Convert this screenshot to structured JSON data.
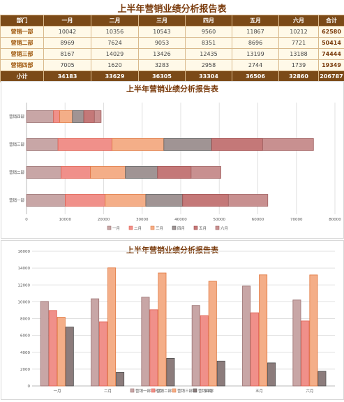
{
  "title": "上半年营销业绩分析报告表",
  "table": {
    "headers": [
      "部门",
      "一月",
      "二月",
      "三月",
      "四月",
      "五月",
      "六月",
      "合计"
    ],
    "rows": [
      {
        "dept": "营销一部",
        "values": [
          10042,
          10356,
          10543,
          9560,
          11867,
          10212
        ],
        "total": 62580
      },
      {
        "dept": "营销二部",
        "values": [
          8969,
          7624,
          9053,
          8351,
          8696,
          7721
        ],
        "total": 50414
      },
      {
        "dept": "营销三部",
        "values": [
          8167,
          14029,
          13426,
          12435,
          13199,
          13188
        ],
        "total": 74444
      },
      {
        "dept": "营销四部",
        "values": [
          7005,
          1620,
          3283,
          2958,
          2744,
          1739
        ],
        "total": 19349
      }
    ],
    "footer": {
      "label": "小计",
      "values": [
        34183,
        33629,
        36305,
        33304,
        36506,
        32860
      ],
      "total": 206787
    }
  },
  "colors": {
    "month_series": [
      "#c8a6a6",
      "#f0908a",
      "#f4ae88",
      "#a09494",
      "#c47878",
      "#c89090"
    ],
    "month_series_stroke": [
      "#9a7070",
      "#e06050",
      "#e07840",
      "#606060",
      "#a04848",
      "#a06060"
    ],
    "dept_series": [
      "#c8a6a6",
      "#f0908a",
      "#f4ae88",
      "#8c7c7c"
    ],
    "dept_series_stroke": [
      "#9a7070",
      "#e06050",
      "#e07840",
      "#505050"
    ]
  },
  "chart_data": [
    {
      "type": "bar",
      "orientation": "horizontal",
      "stacked": true,
      "title": "上半年营销业绩分析报告表",
      "categories": [
        "营销一部",
        "营销二部",
        "营销三部",
        "营销四部"
      ],
      "series": [
        {
          "name": "一月",
          "values": [
            10042,
            8969,
            8167,
            7005
          ]
        },
        {
          "name": "二月",
          "values": [
            10356,
            7624,
            14029,
            1620
          ]
        },
        {
          "name": "三月",
          "values": [
            10543,
            9053,
            13426,
            3283
          ]
        },
        {
          "name": "四月",
          "values": [
            9560,
            8351,
            12435,
            2958
          ]
        },
        {
          "name": "五月",
          "values": [
            11867,
            8696,
            13199,
            2744
          ]
        },
        {
          "name": "六月",
          "values": [
            10212,
            7721,
            13188,
            1739
          ]
        }
      ],
      "xlim": [
        0,
        80000
      ],
      "xticks": [
        "0",
        "10000",
        "20000",
        "30000",
        "40000",
        "50000",
        "60000",
        "70000",
        "80000"
      ],
      "grid": true,
      "legend": "bottom"
    },
    {
      "type": "bar",
      "orientation": "vertical",
      "title": "上半年营销业绩分析报告表",
      "categories": [
        "一月",
        "二月",
        "三月",
        "四月",
        "五月",
        "六月"
      ],
      "series": [
        {
          "name": "营销一部",
          "values": [
            10042,
            10356,
            10543,
            9560,
            11867,
            10212
          ]
        },
        {
          "name": "营销二部",
          "values": [
            8969,
            7624,
            9053,
            8351,
            8696,
            7721
          ]
        },
        {
          "name": "营销三部",
          "values": [
            8167,
            14029,
            13426,
            12435,
            13199,
            13188
          ]
        },
        {
          "name": "营销四部",
          "values": [
            7005,
            1620,
            3283,
            2958,
            2744,
            1739
          ]
        }
      ],
      "ylim": [
        0,
        16000
      ],
      "yticks": [
        "0",
        "2000",
        "4000",
        "6000",
        "8000",
        "10000",
        "12000",
        "14000",
        "16000"
      ],
      "grid": true,
      "legend": "bottom"
    }
  ]
}
